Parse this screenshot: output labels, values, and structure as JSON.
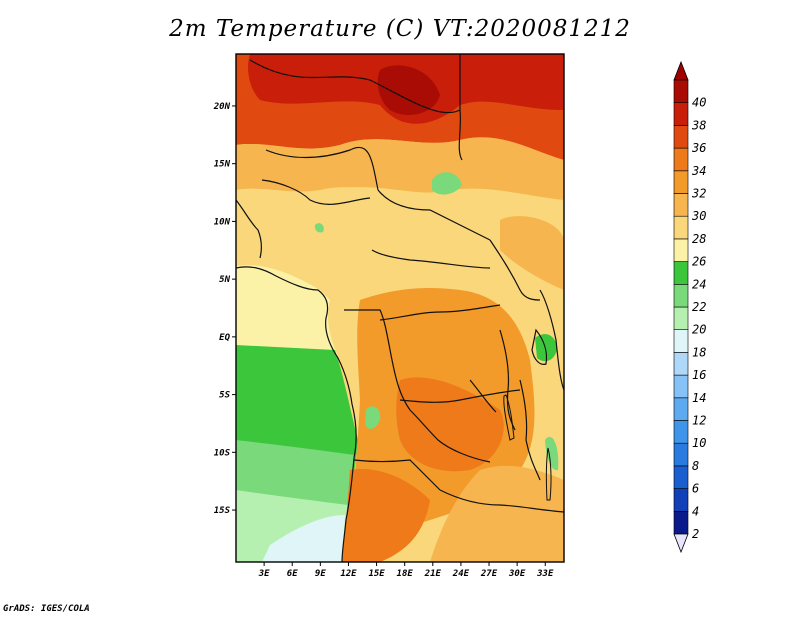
{
  "title": "2m Temperature (C) VT:2020081212",
  "credit": "GrADS: IGES/COLA",
  "map": {
    "lat_labels": [
      "20N",
      "15N",
      "10N",
      "5N",
      "EQ",
      "5S",
      "10S",
      "15S"
    ],
    "lat_values": [
      20,
      15,
      10,
      5,
      0,
      -5,
      -10,
      -15
    ],
    "lon_labels": [
      "3E",
      "6E",
      "9E",
      "12E",
      "15E",
      "18E",
      "21E",
      "24E",
      "27E",
      "30E",
      "33E"
    ],
    "lon_values": [
      3,
      6,
      9,
      12,
      15,
      18,
      21,
      24,
      27,
      30,
      33
    ],
    "lon_range": [
      0,
      35
    ],
    "lat_range": [
      -19.5,
      24.5
    ]
  },
  "colorbar": {
    "labels": [
      "2",
      "4",
      "6",
      "8",
      "10",
      "12",
      "14",
      "16",
      "18",
      "20",
      "22",
      "24",
      "26",
      "28",
      "30",
      "32",
      "34",
      "36",
      "38",
      "40"
    ],
    "colors": [
      "#0b1a8a",
      "#1240b8",
      "#1a5fcf",
      "#2a7be0",
      "#3f95ea",
      "#5eaaf0",
      "#86c2f5",
      "#afd7f8",
      "#dff5f8",
      "#b6f0b0",
      "#7ad97a",
      "#3cc63c",
      "#fbf2a8",
      "#f9d77a",
      "#f6b54f",
      "#f29a2a",
      "#ee7a1a",
      "#e04a10",
      "#c81e0a",
      "#a80c04"
    ],
    "bottom_color": "#e8e6ff",
    "top_color": "#a00000"
  }
}
